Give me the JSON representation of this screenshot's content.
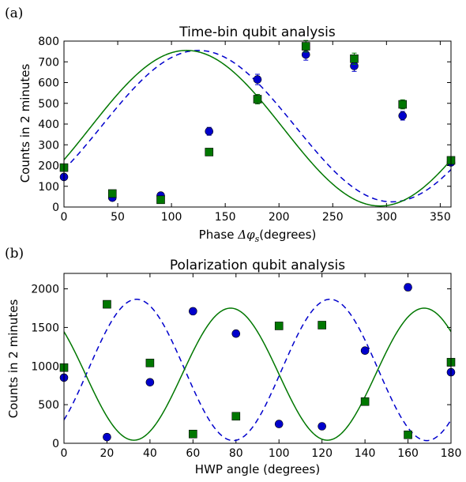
{
  "chart_data": [
    {
      "panel_label": "(a)",
      "type": "scatter",
      "title": "Time-bin qubit analysis",
      "xlabel_prefix": "Phase ",
      "xlabel_symbol": "Δφ",
      "xlabel_sub": "s",
      "xlabel_suffix": "(degrees)",
      "ylabel": "Counts in 2 minutes",
      "xlim": [
        0,
        360
      ],
      "ylim": [
        0,
        800
      ],
      "xticks": [
        0,
        50,
        100,
        150,
        200,
        250,
        300,
        350
      ],
      "yticks": [
        0,
        100,
        200,
        300,
        400,
        500,
        600,
        700,
        800
      ],
      "series": [
        {
          "marker": "circle",
          "color": "#0000cc",
          "fit_style": "dashed",
          "fit": {
            "amplitude": 365,
            "offset": 390,
            "phase_deg": -125,
            "freq": 1
          },
          "x": [
            0,
            45,
            90,
            135,
            180,
            225,
            270,
            315,
            360
          ],
          "y": [
            145,
            45,
            55,
            365,
            615,
            735,
            680,
            440,
            215
          ],
          "yerr": [
            12,
            7,
            8,
            19,
            25,
            27,
            26,
            21,
            15
          ]
        },
        {
          "marker": "square",
          "color": "#007700",
          "fit_style": "solid",
          "fit": {
            "amplitude": 375,
            "offset": 380,
            "phase_deg": -114,
            "freq": 1
          },
          "x": [
            0,
            45,
            90,
            135,
            180,
            225,
            270,
            315,
            360
          ],
          "y": [
            190,
            65,
            35,
            265,
            520,
            775,
            715,
            495,
            225
          ],
          "yerr": [
            14,
            8,
            6,
            16,
            23,
            28,
            27,
            22,
            15
          ]
        }
      ]
    },
    {
      "panel_label": "(b)",
      "type": "scatter",
      "title": "Polarization qubit analysis",
      "xlabel": "HWP angle (degrees)",
      "ylabel": "Counts in 2 minutes",
      "xlim": [
        0,
        180
      ],
      "ylim": [
        0,
        2200
      ],
      "xticks": [
        0,
        20,
        40,
        60,
        80,
        100,
        120,
        140,
        160,
        180
      ],
      "yticks": [
        0,
        500,
        1000,
        1500,
        2000
      ],
      "series": [
        {
          "marker": "circle",
          "color": "#0000cc",
          "fit_style": "dashed",
          "fit": {
            "amplitude": 915,
            "offset": 950,
            "phase_deg": 225,
            "freq": 4
          },
          "x": [
            0,
            20,
            40,
            60,
            80,
            100,
            120,
            140,
            160,
            180
          ],
          "y": [
            850,
            80,
            790,
            1710,
            1420,
            250,
            220,
            1200,
            2020,
            920
          ],
          "yerr": [
            30,
            10,
            28,
            41,
            38,
            16,
            15,
            35,
            45,
            30
          ]
        },
        {
          "marker": "square",
          "color": "#007700",
          "fit_style": "solid",
          "fit": {
            "amplitude": 855,
            "offset": 895,
            "phase_deg": 50,
            "freq": 4
          },
          "x": [
            0,
            20,
            40,
            60,
            80,
            100,
            120,
            140,
            160,
            180
          ],
          "y": [
            980,
            1800,
            1040,
            120,
            350,
            1520,
            1530,
            540,
            110,
            1050
          ],
          "yerr": [
            31,
            42,
            32,
            11,
            19,
            39,
            39,
            23,
            10,
            32
          ]
        }
      ]
    }
  ]
}
